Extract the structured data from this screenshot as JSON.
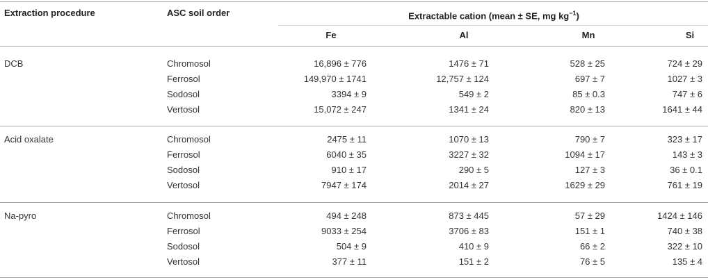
{
  "table": {
    "headers": {
      "procedure": "Extraction procedure",
      "soil_order": "ASC soil order",
      "group_title": "Extractable cation (mean ± SE, mg kg",
      "group_unit_exp": "−1",
      "group_close": ")",
      "columns": [
        "Fe",
        "Al",
        "Mn",
        "Si"
      ]
    },
    "groups": [
      {
        "procedure": "DCB",
        "rows": [
          {
            "soil": "Chromosol",
            "fe": "16,896 ± 776",
            "al": "1476 ± 71",
            "mn": "528 ± 25",
            "si": "724 ± 29"
          },
          {
            "soil": "Ferrosol",
            "fe": "149,970 ± 1741",
            "al": "12,757 ± 124",
            "mn": "697 ± 7",
            "si": "1027 ± 3"
          },
          {
            "soil": "Sodosol",
            "fe": "3394 ± 9",
            "al": "549 ± 2",
            "mn": "85 ± 0.3",
            "si": "747 ± 6"
          },
          {
            "soil": "Vertosol",
            "fe": "15,072 ± 247",
            "al": "1341 ± 24",
            "mn": "820 ± 13",
            "si": "1641 ± 44"
          }
        ]
      },
      {
        "procedure": "Acid oxalate",
        "rows": [
          {
            "soil": "Chromosol",
            "fe": "2475 ± 11",
            "al": "1070 ± 13",
            "mn": "790 ± 7",
            "si": "323 ± 17"
          },
          {
            "soil": "Ferrosol",
            "fe": "6040 ± 35",
            "al": "3227 ± 32",
            "mn": "1094 ± 17",
            "si": "143 ± 3"
          },
          {
            "soil": "Sodosol",
            "fe": "910 ± 17",
            "al": "290 ± 5",
            "mn": "127 ± 3",
            "si": "36 ± 0.1"
          },
          {
            "soil": "Vertosol",
            "fe": "7947 ± 174",
            "al": "2014 ± 27",
            "mn": "1629 ± 29",
            "si": "761 ± 19"
          }
        ]
      },
      {
        "procedure": "Na-pyro",
        "rows": [
          {
            "soil": "Chromosol",
            "fe": "494 ± 248",
            "al": "873 ± 445",
            "mn": "57 ± 29",
            "si": "1424 ± 146"
          },
          {
            "soil": "Ferrosol",
            "fe": "9033 ± 254",
            "al": "3706 ± 83",
            "mn": "151 ± 1",
            "si": "740 ± 38"
          },
          {
            "soil": "Sodosol",
            "fe": "504 ± 9",
            "al": "410 ± 9",
            "mn": "66 ± 2",
            "si": "322 ± 10"
          },
          {
            "soil": "Vertosol",
            "fe": "377 ± 11",
            "al": "151 ± 2",
            "mn": "76 ± 5",
            "si": "135 ± 4"
          }
        ]
      }
    ]
  }
}
